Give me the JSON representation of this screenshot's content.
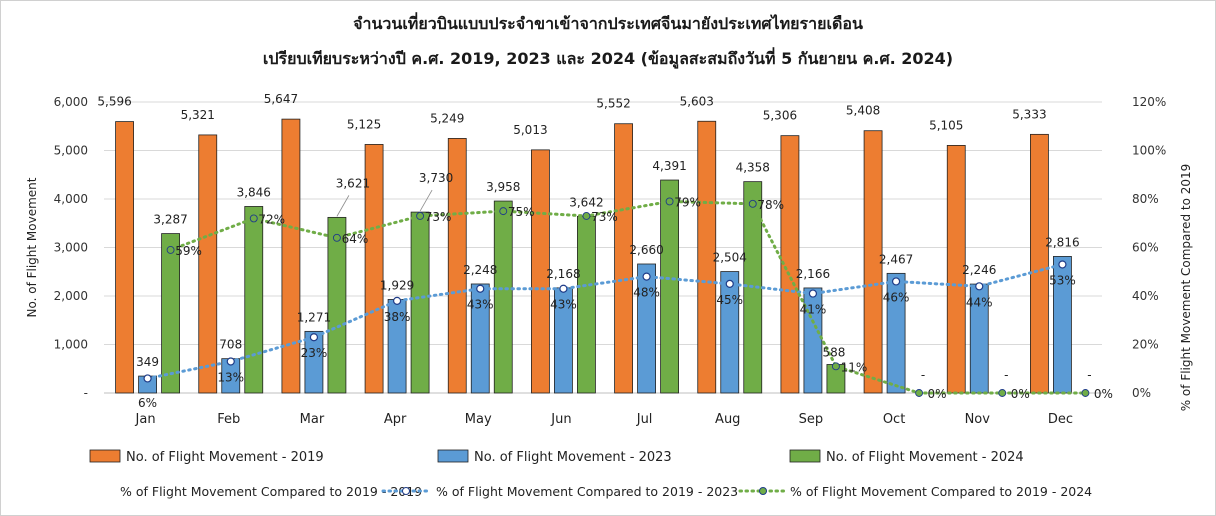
{
  "chart_data": {
    "type": "bar",
    "title": "จำนวนเที่ยวบินแบบประจำขาเข้าจากประเทศจีนมายังประเทศไทยรายเดือน",
    "subtitle": "เปรียบเทียบระหว่างปี  ค.ศ. 2019, 2023 และ 2024 (ข้อมูลสะสมถึงวันที่ 5 กันยายน ค.ศ. 2024)",
    "categories": [
      "Jan",
      "Feb",
      "Mar",
      "Apr",
      "May",
      "Jun",
      "Jul",
      "Aug",
      "Sep",
      "Oct",
      "Nov",
      "Dec"
    ],
    "ylabel": "No. of Flight Movement",
    "y2label": "% of Flight Movement Compared to 2019",
    "ylim": [
      0,
      6000
    ],
    "y2lim": [
      0,
      120
    ],
    "yticks": [
      "-",
      "1,000",
      "2,000",
      "3,000",
      "4,000",
      "5,000",
      "6,000"
    ],
    "y2ticks": [
      "0%",
      "20%",
      "40%",
      "60%",
      "80%",
      "100%",
      "120%"
    ],
    "grid": true,
    "legend_position": "bottom",
    "series": [
      {
        "name": "No. of Flight Movement - 2019",
        "color": "#ED7D31",
        "values": [
          5596,
          5321,
          5647,
          5125,
          5249,
          5013,
          5552,
          5603,
          5306,
          5408,
          5105,
          5333
        ],
        "labels": [
          "5,596",
          "5,321",
          "5,647",
          "5,125",
          "5,249",
          "5,013",
          "5,552",
          "5,603",
          "5,306",
          "5,408",
          "5,105",
          "5,333"
        ]
      },
      {
        "name": "No. of Flight Movement - 2023",
        "color": "#5B9BD5",
        "values": [
          349,
          708,
          1271,
          1929,
          2248,
          2168,
          2660,
          2504,
          2166,
          2467,
          2246,
          2816
        ],
        "labels": [
          "349",
          "708",
          "1,271",
          "1,929",
          "2,248",
          "2,168",
          "2,660",
          "2,504",
          "2,166",
          "2,467",
          "2,246",
          "2,816"
        ]
      },
      {
        "name": "No. of Flight Movement - 2024",
        "color": "#70AD47",
        "values": [
          3287,
          3846,
          3621,
          3730,
          3958,
          3642,
          4391,
          4358,
          588,
          0,
          0,
          0
        ],
        "labels": [
          "3,287",
          "3,846",
          "3,621",
          "3,730",
          "3,958",
          "3,642",
          "4,391",
          "4,358",
          "588",
          "-",
          "-",
          "-"
        ]
      }
    ],
    "pct_series": [
      {
        "name": "% of Flight Movement Compared to 2019 - 2019",
        "color": "#ED7D31",
        "values": [
          null,
          null,
          null,
          null,
          null,
          null,
          null,
          null,
          null,
          null,
          null,
          null
        ],
        "labels": []
      },
      {
        "name": "% of Flight Movement Compared to 2019 - 2023",
        "color": "#5B9BD5",
        "values": [
          6,
          13,
          23,
          38,
          43,
          43,
          48,
          45,
          41,
          46,
          44,
          53
        ],
        "labels": [
          "6%",
          "13%",
          "23%",
          "38%",
          "43%",
          "43%",
          "48%",
          "45%",
          "41%",
          "46%",
          "44%",
          "53%"
        ]
      },
      {
        "name": "% of Flight Movement Compared to 2019 - 2024",
        "color": "#70AD47",
        "values": [
          59,
          72,
          64,
          73,
          75,
          73,
          79,
          78,
          11,
          0,
          0,
          0
        ],
        "labels": [
          "59%",
          "72%",
          "64%",
          "73%",
          "75%",
          "73%",
          "79%",
          "78%",
          "11%",
          "0%",
          "0%",
          "0%"
        ]
      }
    ]
  }
}
